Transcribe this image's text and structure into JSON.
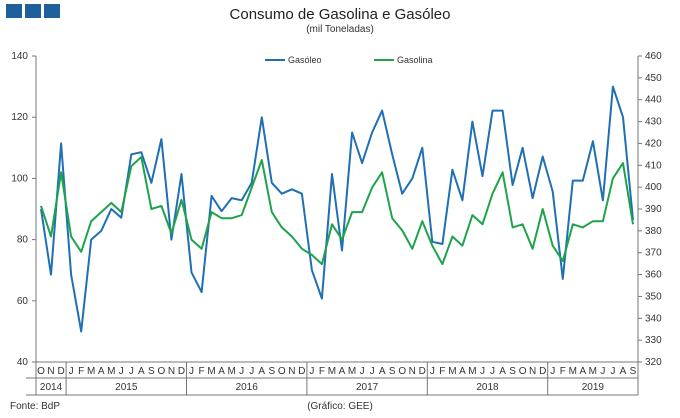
{
  "header": {
    "logo_icon": "bdp-logo-squares"
  },
  "chart_data": {
    "type": "line",
    "title": "Consumo de Gasolina e Gasóleo",
    "subtitle": "(mil Toneladas)",
    "source": "Fonte: BdP",
    "credit": "(Gráfico: GEE)",
    "x": [
      "O",
      "N",
      "D",
      "J",
      "F",
      "M",
      "A",
      "M",
      "J",
      "J",
      "A",
      "S",
      "O",
      "N",
      "D",
      "J",
      "F",
      "M",
      "A",
      "M",
      "J",
      "J",
      "A",
      "S",
      "O",
      "N",
      "D",
      "J",
      "F",
      "M",
      "A",
      "M",
      "J",
      "J",
      "A",
      "S",
      "O",
      "N",
      "D",
      "J",
      "F",
      "M",
      "A",
      "M",
      "J",
      "J",
      "A",
      "S",
      "O",
      "N",
      "D",
      "J",
      "F",
      "M",
      "A",
      "M",
      "J",
      "J",
      "A",
      "S"
    ],
    "years": [
      {
        "label": "2014",
        "start": 0,
        "end": 3
      },
      {
        "label": "2015",
        "start": 3,
        "end": 15
      },
      {
        "label": "2016",
        "start": 15,
        "end": 27
      },
      {
        "label": "2017",
        "start": 27,
        "end": 39
      },
      {
        "label": "2018",
        "start": 39,
        "end": 51
      },
      {
        "label": "2019",
        "start": 51,
        "end": 60
      }
    ],
    "left_axis": {
      "ylim": [
        40,
        140
      ],
      "ticks": [
        40,
        60,
        80,
        100,
        120,
        140
      ]
    },
    "right_axis": {
      "ylim": [
        320,
        460
      ],
      "ticks": [
        320,
        330,
        340,
        350,
        360,
        370,
        380,
        390,
        400,
        410,
        420,
        430,
        440,
        450,
        460
      ]
    },
    "legend_position": "top-center",
    "grid": false,
    "series": [
      {
        "name": "Gasóleo",
        "axis": "right",
        "color": "#1f6fb4",
        "values": [
          390,
          360,
          420,
          360,
          334,
          376,
          380,
          390,
          386,
          415,
          416,
          402,
          422,
          376,
          406,
          361,
          352,
          396,
          389,
          395,
          394,
          402,
          432,
          402,
          397,
          399,
          397,
          362,
          349,
          406,
          371,
          425,
          411,
          425,
          435,
          415,
          397,
          404,
          418,
          375,
          374,
          408,
          394,
          430,
          405,
          435,
          435,
          401,
          418,
          395,
          414,
          398,
          358,
          403,
          403,
          421,
          394,
          446,
          432,
          385
        ]
      },
      {
        "name": "Gasolina",
        "axis": "left",
        "color": "#1fa34a",
        "values": [
          91,
          81,
          102,
          81,
          76,
          86,
          89,
          92,
          89,
          104,
          107,
          90,
          91,
          82,
          93,
          80,
          77,
          89,
          87,
          87,
          88,
          97,
          106,
          89,
          84,
          81,
          77,
          75,
          72,
          85,
          80,
          89,
          89,
          97,
          102,
          87,
          83,
          77,
          86,
          78,
          72,
          81,
          78,
          88,
          85,
          95,
          102,
          84,
          85,
          77,
          90,
          78,
          73,
          85,
          84,
          86,
          86,
          100,
          105,
          85
        ]
      }
    ]
  }
}
